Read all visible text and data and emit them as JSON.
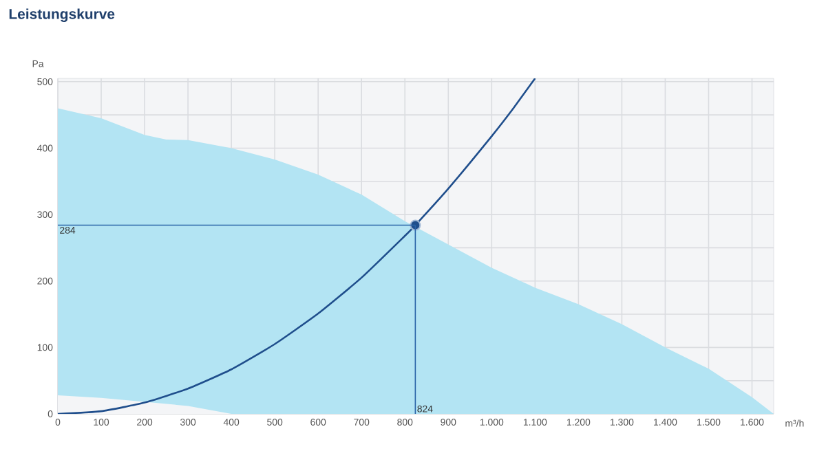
{
  "chart_data": {
    "type": "area",
    "title": "Leistungskurve",
    "xlabel": "m³/h",
    "ylabel": "Pa",
    "xlim": [
      0,
      1650
    ],
    "ylim": [
      0,
      505
    ],
    "xticks": [
      0,
      100,
      200,
      300,
      400,
      500,
      600,
      700,
      800,
      900,
      {
        "value": 1000,
        "label": "1.000"
      },
      {
        "value": 1100,
        "label": "1.100"
      },
      {
        "value": 1200,
        "label": "1.200"
      },
      {
        "value": 1300,
        "label": "1.300"
      },
      {
        "value": 1400,
        "label": "1.400"
      },
      {
        "value": 1500,
        "label": "1.500"
      },
      {
        "value": 1600,
        "label": "1.600"
      }
    ],
    "yticks": [
      0,
      {
        "value": 50,
        "label": null
      },
      100,
      {
        "value": 150,
        "label": null
      },
      200,
      {
        "value": 250,
        "label": null
      },
      300,
      {
        "value": 350,
        "label": null
      },
      400,
      {
        "value": 450,
        "label": null
      },
      500
    ],
    "grid": true,
    "series": [
      {
        "color": "#b3e4f3",
        "x": [
          0,
          100,
          200,
          250,
          300,
          400,
          500,
          600,
          700,
          800,
          900,
          1000,
          1100,
          1200,
          1300,
          1400,
          1500,
          1600,
          1650
        ],
        "values": [
          460,
          445,
          420,
          413,
          412,
          400,
          383,
          360,
          330,
          290,
          255,
          220,
          190,
          165,
          135,
          100,
          68,
          25,
          0
        ]
      },
      {
        "color": "#f4f5f7",
        "x": [
          0,
          100,
          200,
          300,
          400
        ],
        "values": [
          28,
          24,
          18,
          12,
          0
        ]
      },
      {
        "type": "line",
        "color": "#1f4e8c",
        "x": [
          0,
          100,
          200,
          300,
          400,
          500,
          600,
          700,
          800,
          824,
          900,
          1000,
          1050,
          1100
        ],
        "values": [
          0,
          4,
          17,
          38,
          67,
          105,
          151,
          205,
          268,
          284,
          339,
          418,
          460,
          505
        ]
      },
      {
        "type": "scatter",
        "color": "#1f4e8c",
        "x": [
          824
        ],
        "values": [
          284
        ]
      }
    ],
    "ref_lines": [
      {
        "axis": "x",
        "value": 824,
        "label": "824",
        "color": "#2a64a8"
      },
      {
        "axis": "y",
        "value": 284,
        "label": "284",
        "color": "#2a64a8"
      }
    ]
  }
}
